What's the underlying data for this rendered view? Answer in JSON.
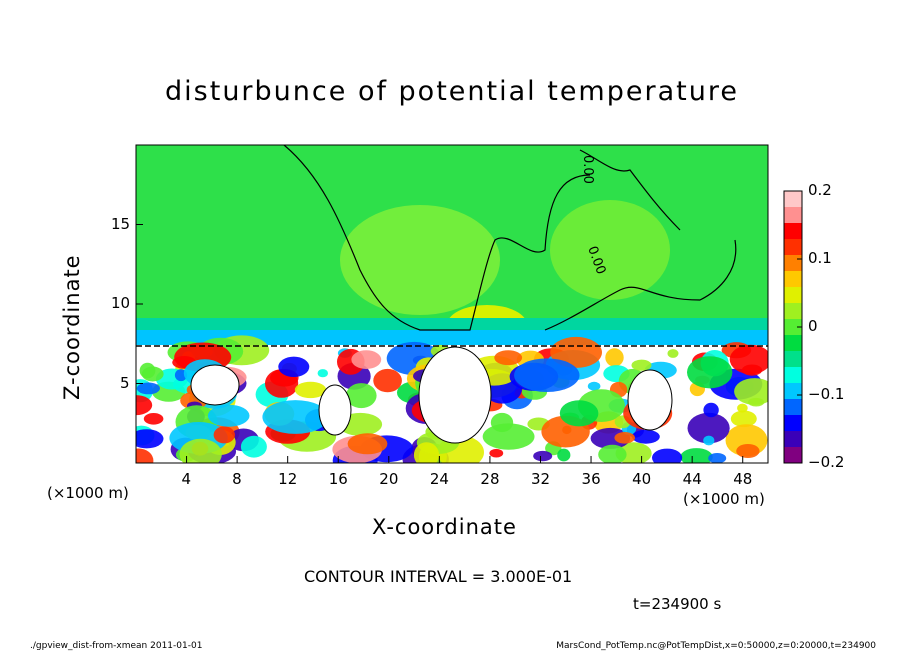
{
  "chart_data": {
    "type": "heatmap",
    "title": "disturbunce of potential temperature",
    "xlabel": "X-coordinate",
    "ylabel": "Z-coordinate",
    "x_unit": "(×1000 m)",
    "y_unit": "(×1000 m)",
    "xlim": [
      0,
      50
    ],
    "ylim": [
      0,
      20
    ],
    "x_ticks": [
      4,
      8,
      12,
      16,
      20,
      24,
      28,
      32,
      36,
      40,
      44,
      48
    ],
    "y_ticks": [
      5,
      10,
      15
    ],
    "colorbar": {
      "ticks": [
        0.2,
        0.1,
        0,
        -0.1,
        -0.2
      ],
      "tick_labels": [
        "0.2",
        "0.1",
        "0",
        "−0.1",
        "−0.2"
      ],
      "range": [
        -0.2,
        0.2
      ],
      "colors": [
        "#800080",
        "#3a00b8",
        "#0000ff",
        "#0066ff",
        "#00c8ff",
        "#00ffe0",
        "#00e08a",
        "#00dc40",
        "#55ee33",
        "#9ff020",
        "#e0f000",
        "#ffc800",
        "#ff8000",
        "#ff3000",
        "#ff0000",
        "#ff9090",
        "#ffc8c8"
      ]
    },
    "contour_labels": [
      "0.00",
      "0.00"
    ],
    "contour_interval": "CONTOUR INTERVAL = 3.000E-01",
    "time": "t=234900 s",
    "footer_left": "./gpview_dist-from-xmean  2011-01-01",
    "footer_right": "MarsCond_PotTemp.nc@PotTempDist,x=0:50000,z=0:20000,t=234900"
  }
}
